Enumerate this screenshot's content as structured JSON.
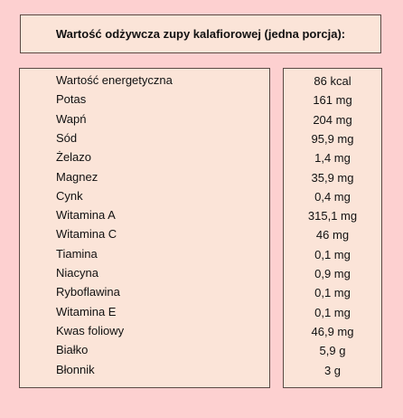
{
  "title": "Wartość odżywcza zupy kalafiorowej (jedna porcja):",
  "rows": [
    [
      "Wartość energetyczna",
      "86 kcal"
    ],
    [
      "Potas",
      "161 mg"
    ],
    [
      "Wapń",
      "204 mg"
    ],
    [
      "Sód",
      "95,9 mg"
    ],
    [
      "Żelazo",
      "1,4 mg"
    ],
    [
      "Magnez",
      "35,9 mg"
    ],
    [
      "Cynk",
      "0,4 mg"
    ],
    [
      "Witamina A",
      "315,1 mg"
    ],
    [
      "Witamina C",
      "46 mg"
    ],
    [
      "Tiamina",
      "0,1 mg"
    ],
    [
      "Niacyna",
      "0,9 mg"
    ],
    [
      "Ryboflawina",
      "0,1 mg"
    ],
    [
      "Witamina E",
      "0,1 mg"
    ],
    [
      "Kwas foliowy",
      "46,9 mg"
    ],
    [
      "Białko",
      "5,9 g"
    ],
    [
      "Błonnik",
      "3 g"
    ]
  ]
}
